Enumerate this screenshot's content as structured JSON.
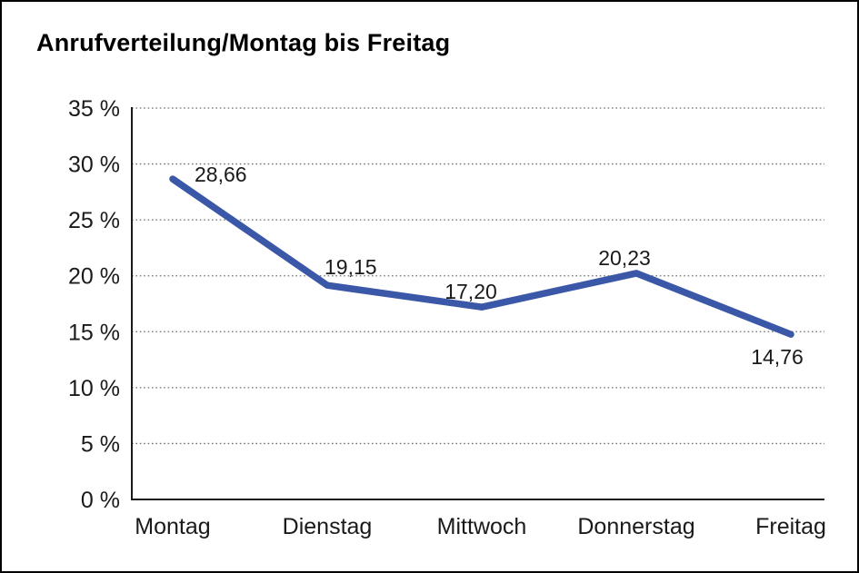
{
  "window": {
    "title": "Anrufverteilung/Montag bis Freitag"
  },
  "chart_data": {
    "type": "line",
    "title": "Anrufverteilung/Montag bis Freitag",
    "categories": [
      "Montag",
      "Dienstag",
      "Mittwoch",
      "Donnerstag",
      "Freitag"
    ],
    "series": [
      {
        "name": "Anrufverteilung",
        "values": [
          28.66,
          19.15,
          17.2,
          20.23,
          14.76
        ]
      }
    ],
    "value_labels": [
      "28,66",
      "19,15",
      "17,20",
      "20,23",
      "14,76"
    ],
    "xlabel": "",
    "ylabel": "",
    "ylim": [
      0,
      35
    ],
    "y_tick_step": 5,
    "y_tick_labels": [
      "0 %",
      "5 %",
      "10 %",
      "15 %",
      "20 %",
      "25 %",
      "30 %",
      "35 %"
    ],
    "grid": "horizontal-dotted",
    "legend": "none",
    "line_color": "#3a57a8",
    "axis_color": "#1a1a1a",
    "grid_color": "#6e6e6e",
    "text_color": "#1a1a1a"
  }
}
